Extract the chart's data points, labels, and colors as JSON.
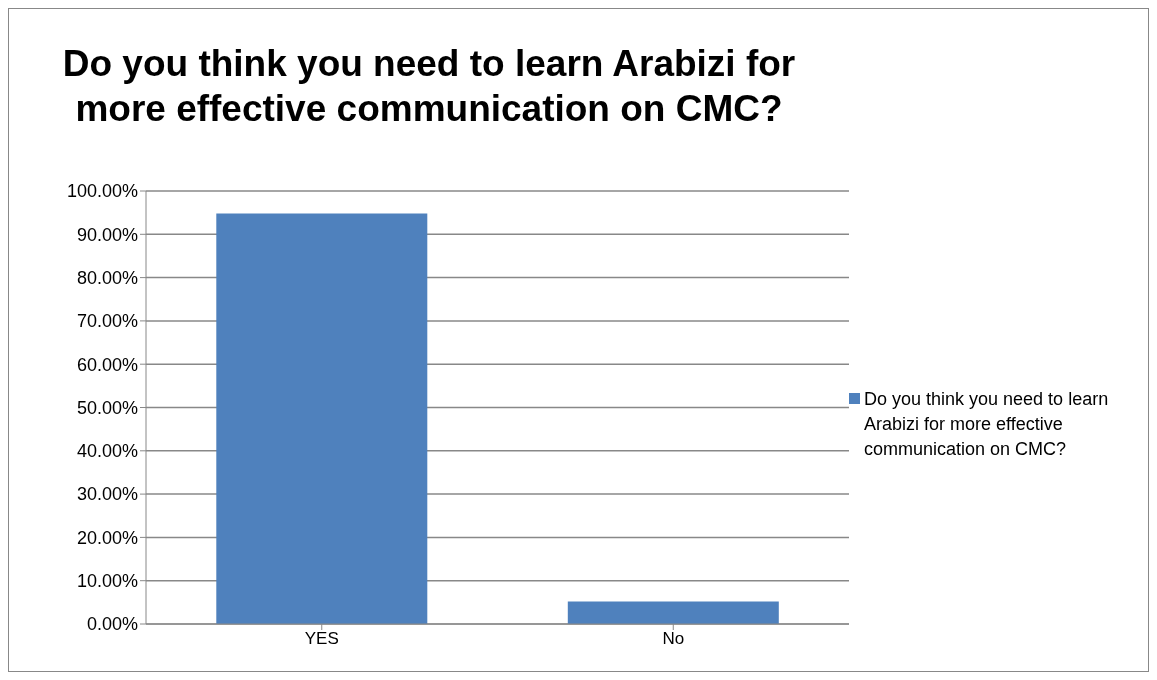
{
  "chart_data": {
    "type": "bar",
    "title": "Do you think you need to learn Arabizi for more effective communication on CMC?",
    "categories": [
      "YES",
      "No"
    ],
    "series": [
      {
        "name": "Do you think you need to learn Arabizi for more effective communication on CMC?",
        "color": "#4f81bd",
        "values": [
          94.8,
          5.2
        ]
      }
    ],
    "ylim": [
      0,
      100
    ],
    "yticks": [
      {
        "value": 0,
        "label": "0.00%"
      },
      {
        "value": 10,
        "label": "10.00%"
      },
      {
        "value": 20,
        "label": "20.00%"
      },
      {
        "value": 30,
        "label": "30.00%"
      },
      {
        "value": 40,
        "label": "40.00%"
      },
      {
        "value": 50,
        "label": "50.00%"
      },
      {
        "value": 60,
        "label": "60.00%"
      },
      {
        "value": 70,
        "label": "70.00%"
      },
      {
        "value": 80,
        "label": "80.00%"
      },
      {
        "value": 90,
        "label": "90.00%"
      },
      {
        "value": 100,
        "label": "100.00%"
      }
    ],
    "grid": "y",
    "legend": "right"
  }
}
